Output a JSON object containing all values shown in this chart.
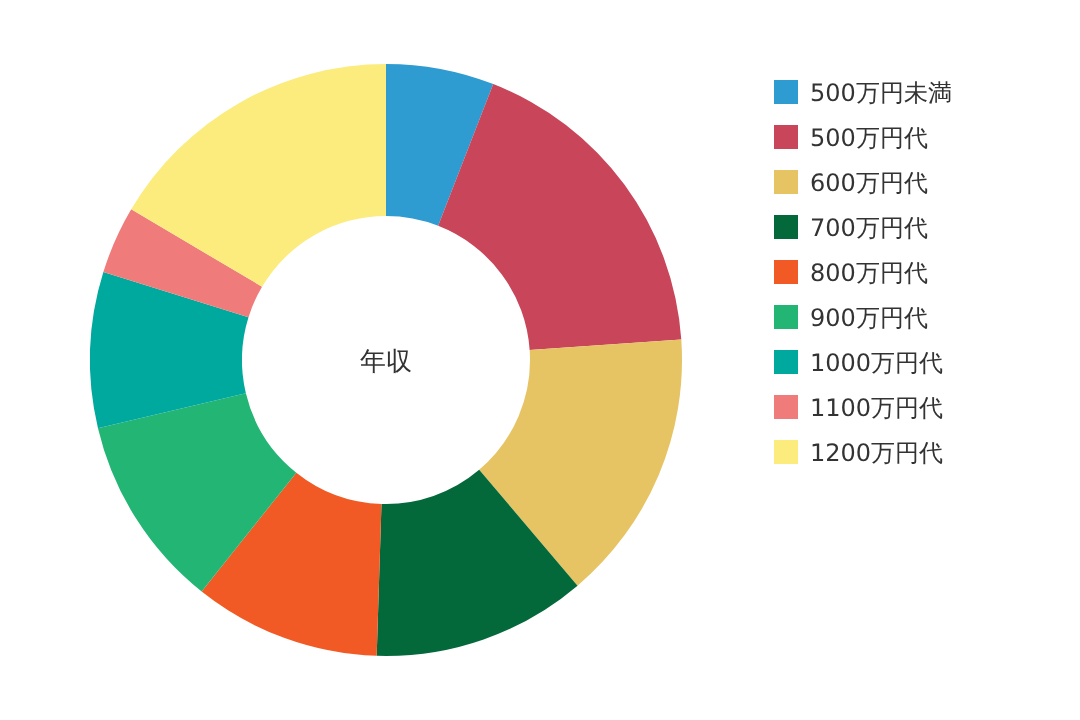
{
  "chart_data": {
    "type": "donut",
    "title": "年収",
    "categories": [
      "500万円未満",
      "500万円代",
      "600万円代",
      "700万円代",
      "800万円代",
      "900万円代",
      "1000万円代",
      "1100万円代",
      "1200万円代"
    ],
    "values": [
      5.9,
      18.0,
      14.9,
      11.7,
      10.2,
      10.6,
      8.5,
      3.7,
      16.5
    ],
    "colors": [
      "#2e9bd1",
      "#c8455a",
      "#e6c363",
      "#04693a",
      "#f15a24",
      "#22b573",
      "#00a99d",
      "#f07b7b",
      "#fbec7d"
    ],
    "legend": "right"
  }
}
